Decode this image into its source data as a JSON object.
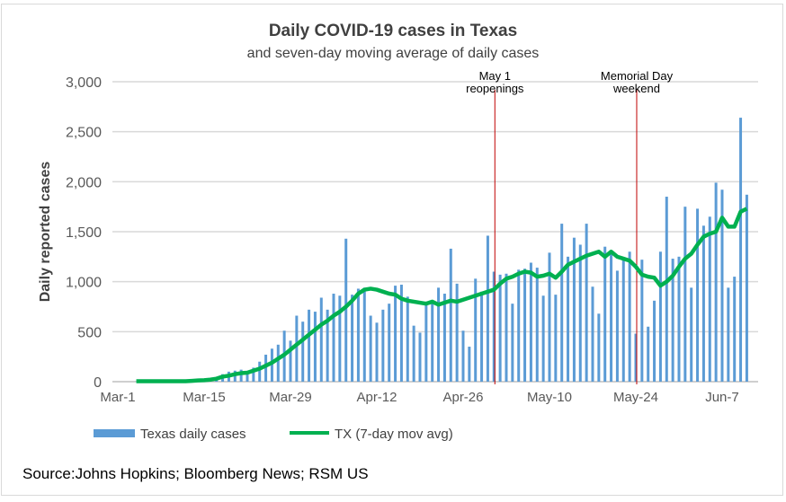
{
  "chart_data": {
    "type": "bar+line",
    "title": "Daily COVID-19 cases in Texas",
    "subtitle": "and seven-day moving average of daily cases",
    "ylabel": "Daily reported cases",
    "xlabel": "",
    "ylim": [
      0,
      3000
    ],
    "yticks": [
      "0",
      "500",
      "1,000",
      "1,500",
      "2,000",
      "2,500",
      "3,000"
    ],
    "ytick_values": [
      0,
      500,
      1000,
      1500,
      2000,
      2500,
      3000
    ],
    "xticks": [
      "Mar-1",
      "Mar-15",
      "Mar-29",
      "Apr-12",
      "Apr-26",
      "May-10",
      "May-24",
      "Jun-7"
    ],
    "xtick_day_index": [
      0,
      14,
      28,
      42,
      56,
      70,
      84,
      98
    ],
    "x_start": "Mar-1",
    "grid": true,
    "legend_position": "bottom",
    "colors": {
      "bars": "#5b9bd5",
      "line": "#00b050",
      "annotation": "#c00000",
      "grid": "#d9d9d9"
    },
    "annotations": [
      {
        "label_lines": [
          "May 1",
          "reopenings"
        ],
        "day_index": 61
      },
      {
        "label_lines": [
          "Memorial Day",
          "weekend"
        ],
        "day_index": 84
      }
    ],
    "series": [
      {
        "name": "Texas daily cases",
        "type": "bar",
        "values": [
          0,
          0,
          0,
          1,
          2,
          3,
          5,
          3,
          4,
          5,
          4,
          6,
          10,
          20,
          30,
          15,
          20,
          75,
          100,
          110,
          120,
          100,
          140,
          200,
          270,
          330,
          370,
          510,
          410,
          660,
          600,
          720,
          700,
          840,
          720,
          880,
          860,
          1430,
          870,
          930,
          940,
          660,
          590,
          720,
          780,
          960,
          970,
          850,
          560,
          490,
          800,
          810,
          940,
          880,
          1330,
          980,
          510,
          350,
          1030,
          900,
          1460,
          1100,
          1070,
          1080,
          780,
          1120,
          1130,
          1190,
          1140,
          860,
          1290,
          870,
          1580,
          1250,
          1440,
          1370,
          1580,
          950,
          680,
          1350,
          1280,
          1110,
          1240,
          1300,
          480,
          1220,
          550,
          810,
          1300,
          1850,
          1230,
          1250,
          1750,
          940,
          1730,
          1560,
          1650,
          1990,
          1920,
          940,
          1050,
          2640,
          1870
        ]
      },
      {
        "name": "TX (7-day mov avg)",
        "type": "line",
        "values": [
          null,
          null,
          null,
          5,
          5,
          5,
          5,
          5,
          5,
          5,
          5,
          5,
          8,
          12,
          15,
          20,
          30,
          50,
          60,
          75,
          85,
          90,
          110,
          130,
          160,
          190,
          230,
          270,
          320,
          370,
          420,
          470,
          520,
          570,
          610,
          660,
          700,
          750,
          810,
          880,
          920,
          930,
          920,
          900,
          880,
          870,
          830,
          810,
          800,
          790,
          780,
          800,
          770,
          790,
          810,
          800,
          820,
          840,
          860,
          880,
          900,
          920,
          980,
          1030,
          1050,
          1080,
          1100,
          1090,
          1050,
          1060,
          1080,
          1040,
          1100,
          1170,
          1200,
          1230,
          1260,
          1280,
          1300,
          1250,
          1300,
          1250,
          1230,
          1210,
          1150,
          1070,
          1050,
          1040,
          960,
          1000,
          1060,
          1150,
          1230,
          1280,
          1370,
          1450,
          1480,
          1500,
          1640,
          1550,
          1550,
          1700,
          1730
        ]
      }
    ]
  },
  "source": "Source:Johns Hopkins; Bloomberg News; RSM US"
}
